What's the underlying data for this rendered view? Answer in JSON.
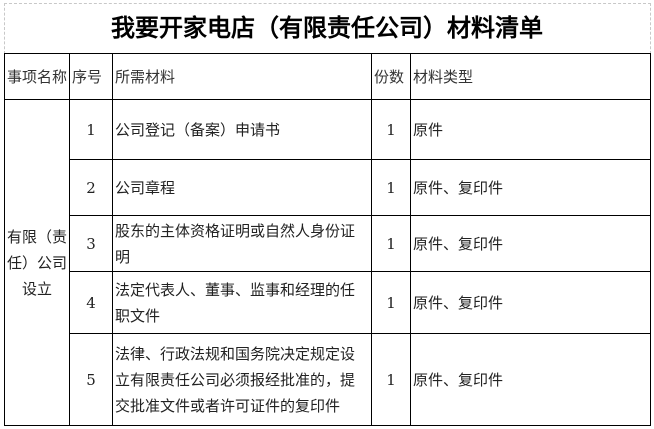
{
  "title": "我要开家电店（有限责任公司）材料清单",
  "headers": [
    "事项名称",
    "序号",
    "所需材料",
    "份数",
    "材料类型"
  ],
  "item_name": "有限（责任）公司设立",
  "rows": [
    {
      "no": "1",
      "material": "公司登记（备案）申请书",
      "count": "1",
      "type": "原件"
    },
    {
      "no": "2",
      "material": "公司章程",
      "count": "1",
      "type": "原件、复印件"
    },
    {
      "no": "3",
      "material": "股东的主体资格证明或自然人身份证明",
      "count": "1",
      "type": "原件、复印件"
    },
    {
      "no": "4",
      "material": "法定代表人、董事、监事和经理的任职文件",
      "count": "1",
      "type": "原件、复印件"
    },
    {
      "no": "5",
      "material": "法律、行政法规和国务院决定规定设立有限责任公司必须报经批准的，提交批准文件或者许可证件的复印件",
      "count": "1",
      "type": "原件、复印件"
    }
  ]
}
